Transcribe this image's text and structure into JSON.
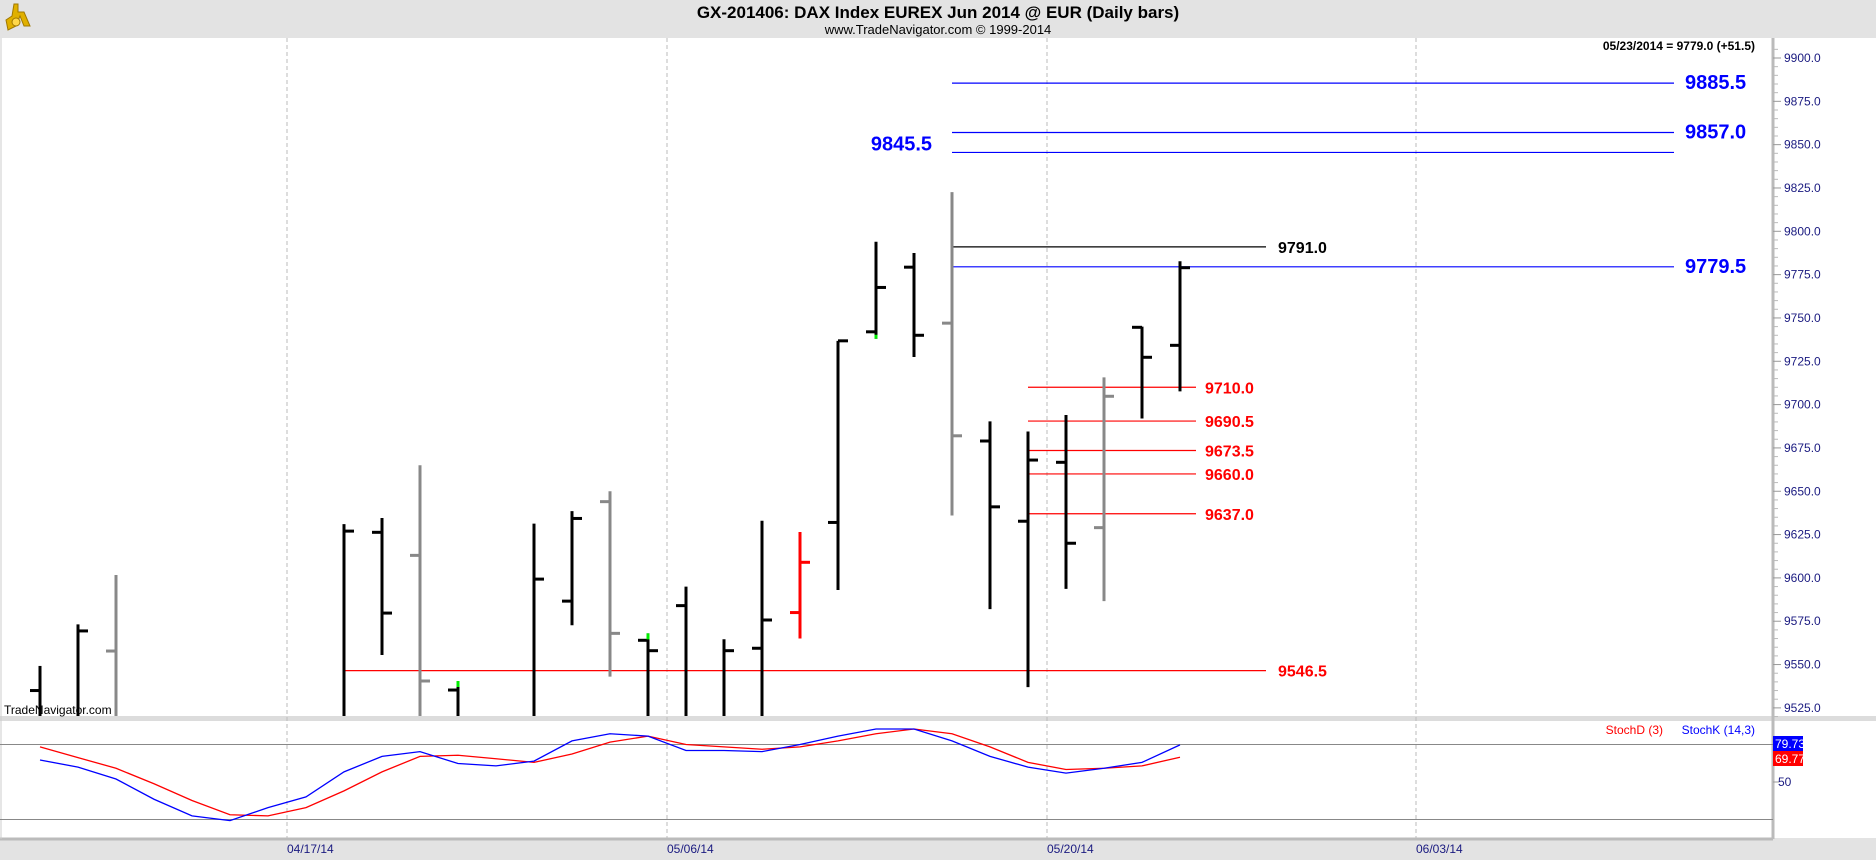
{
  "header": {
    "title": "GX-201406:  DAX Index EUREX Jun 2014 @ EUR  (Daily bars)",
    "subtitle": "www.TradeNavigator.com © 1999-2014",
    "last_value": "05/23/2014 = 9779.0 (+51.5)",
    "watermark": "TradeNavigator.com",
    "logo_icon": "sextant-logo-icon"
  },
  "colors": {
    "up": "#000000",
    "gray": "#888888",
    "red": "#ff0000",
    "green": "#00ee00",
    "blue": "#0000ff",
    "grid": "#bbbbbb"
  },
  "chart_data": [
    {
      "type": "ohlc",
      "title": "GX-201406: DAX Index EUREX Jun 2014 @ EUR (Daily bars)",
      "ylim": [
        9515,
        9905
      ],
      "y_ticks": [
        "9900.0",
        "9875.0",
        "9850.0",
        "9825.0",
        "9800.0",
        "9775.0",
        "9750.0",
        "9725.0",
        "9700.0",
        "9675.0",
        "9650.0",
        "9625.0",
        "9600.0",
        "9575.0",
        "9550.0",
        "9525.0"
      ],
      "x_tick_labels": [
        "04/17/14",
        "05/06/14",
        "05/20/14",
        "06/03/14"
      ],
      "bars": [
        {
          "slot": 0,
          "o": 9535,
          "h": 9549.2,
          "l": null,
          "c": null,
          "color": "black"
        },
        {
          "slot": 1,
          "o": null,
          "h": 9573.2,
          "l": null,
          "c": 9569.4,
          "color": "black"
        },
        {
          "slot": 2,
          "o": 9557.8,
          "h": 9601.7,
          "l": null,
          "c": null,
          "color": "gray"
        },
        {
          "slot": 8,
          "o": null,
          "h": 9631,
          "l": null,
          "c": 9627,
          "color": "black"
        },
        {
          "slot": 9,
          "o": 9626.3,
          "h": 9634.6,
          "l": 9555.5,
          "c": 9579.7,
          "color": "black"
        },
        {
          "slot": 10,
          "o": 9613,
          "h": 9665,
          "l": null,
          "c": 9540.5,
          "color": "gray"
        },
        {
          "slot": 11,
          "o": 9535.3,
          "h": 9540.5,
          "l": null,
          "c": null,
          "color": "black",
          "tip": "top"
        },
        {
          "slot": 13,
          "o": null,
          "h": 9631.3,
          "l": null,
          "c": 9599.3,
          "color": "black"
        },
        {
          "slot": 14,
          "o": 9586.6,
          "h": 9638.5,
          "l": 9572.7,
          "c": 9634.3,
          "color": "black"
        },
        {
          "slot": 15,
          "o": 9644,
          "h": 9650,
          "l": 9543,
          "c": 9568,
          "color": "gray"
        },
        {
          "slot": 16,
          "o": 9564,
          "h": 9568,
          "l": null,
          "c": 9558,
          "color": "black",
          "tip": "top"
        },
        {
          "slot": 17,
          "o": 9584,
          "h": 9595,
          "l": null,
          "c": null,
          "color": "black"
        },
        {
          "slot": 18,
          "o": null,
          "h": 9564.6,
          "l": null,
          "c": 9558,
          "color": "black"
        },
        {
          "slot": 19,
          "o": 9559.4,
          "h": 9633,
          "l": null,
          "c": 9575.7,
          "color": "black"
        },
        {
          "slot": 20,
          "o": 9580,
          "h": 9626.5,
          "l": 9565,
          "c": 9609,
          "color": "red"
        },
        {
          "slot": 21,
          "o": 9632,
          "h": 9736.8,
          "l": 9593,
          "c": 9736.8,
          "color": "black"
        },
        {
          "slot": 22,
          "o": 9742,
          "h": 9794,
          "l": 9738,
          "c": 9767.6,
          "color": "black",
          "tip": "bottom"
        },
        {
          "slot": 23,
          "o": 9779.3,
          "h": 9787.5,
          "l": 9727.5,
          "c": 9740,
          "color": "black"
        },
        {
          "slot": 24,
          "o": 9747,
          "h": 9822.6,
          "l": 9636,
          "c": 9682,
          "color": "gray"
        },
        {
          "slot": 25,
          "o": 9679,
          "h": 9690.3,
          "l": 9582,
          "c": 9641,
          "color": "black"
        },
        {
          "slot": 26,
          "o": 9632.7,
          "h": 9684.5,
          "l": 9537,
          "c": 9668,
          "color": "black"
        },
        {
          "slot": 27,
          "o": 9666.7,
          "h": 9694,
          "l": 9593.7,
          "c": 9620,
          "color": "black"
        },
        {
          "slot": 28,
          "o": 9629,
          "h": 9715.7,
          "l": 9586.6,
          "c": 9704.8,
          "color": "gray"
        },
        {
          "slot": 29,
          "o": 9744.6,
          "h": 9745,
          "l": 9692,
          "c": 9727.3,
          "color": "black"
        },
        {
          "slot": 30,
          "o": 9734.2,
          "h": 9782.7,
          "l": 9707.6,
          "c": 9779,
          "color": "black"
        }
      ],
      "levels": [
        {
          "value": 9885.5,
          "label": "9885.5",
          "color": "blue",
          "from_slot": 24
        },
        {
          "value": 9857.0,
          "label": "9857.0",
          "color": "blue",
          "from_slot": 24
        },
        {
          "value": 9845.5,
          "label": "9845.5",
          "color": "blue",
          "from_slot": 24
        },
        {
          "value": 9791.0,
          "label": "9791.0",
          "color": "black",
          "from_slot": 24
        },
        {
          "value": 9779.5,
          "label": "9779.5",
          "color": "blue",
          "from_slot": 24
        },
        {
          "value": 9710.0,
          "label": "9710.0",
          "color": "red",
          "from_slot": 26
        },
        {
          "value": 9690.5,
          "label": "9690.5",
          "color": "red",
          "from_slot": 26
        },
        {
          "value": 9673.5,
          "label": "9673.5",
          "color": "red",
          "from_slot": 26
        },
        {
          "value": 9660.0,
          "label": "9660.0",
          "color": "red",
          "from_slot": 26
        },
        {
          "value": 9637.0,
          "label": "9637.0",
          "color": "red",
          "from_slot": 26
        },
        {
          "value": 9546.5,
          "label": "9546.5",
          "color": "red",
          "from_slot": 8
        }
      ]
    },
    {
      "type": "line",
      "title": "Stochastic",
      "ylim": [
        0,
        100
      ],
      "guide_lines": [
        80,
        20
      ],
      "y_tick": "50",
      "series": [
        {
          "name": "StochD (3)",
          "color": "red",
          "last": "69.77",
          "values": [
            78.1,
            69.5,
            61,
            48.6,
            35.2,
            23.8,
            22.9,
            29.5,
            42.9,
            58.1,
            70.5,
            71.4,
            68.6,
            65.7,
            72.4,
            81.9,
            86.7,
            80,
            78.1,
            76.2,
            78.1,
            82.9,
            88.6,
            92.4,
            88.6,
            78.1,
            65.7,
            60,
            61,
            62.9,
            69.8
          ]
        },
        {
          "name": "StochK (14,3)",
          "color": "blue",
          "last": "79.73",
          "values": [
            67.6,
            61.9,
            52.4,
            36.2,
            22.9,
            19.1,
            29.5,
            38.1,
            58.1,
            70.5,
            74.3,
            64.8,
            62.9,
            66.7,
            82.9,
            88.6,
            86.7,
            75.2,
            75.2,
            74.3,
            80,
            86.7,
            92.4,
            92.4,
            82.9,
            70.5,
            61.9,
            57.1,
            61,
            65.7,
            79.7
          ]
        }
      ]
    }
  ]
}
